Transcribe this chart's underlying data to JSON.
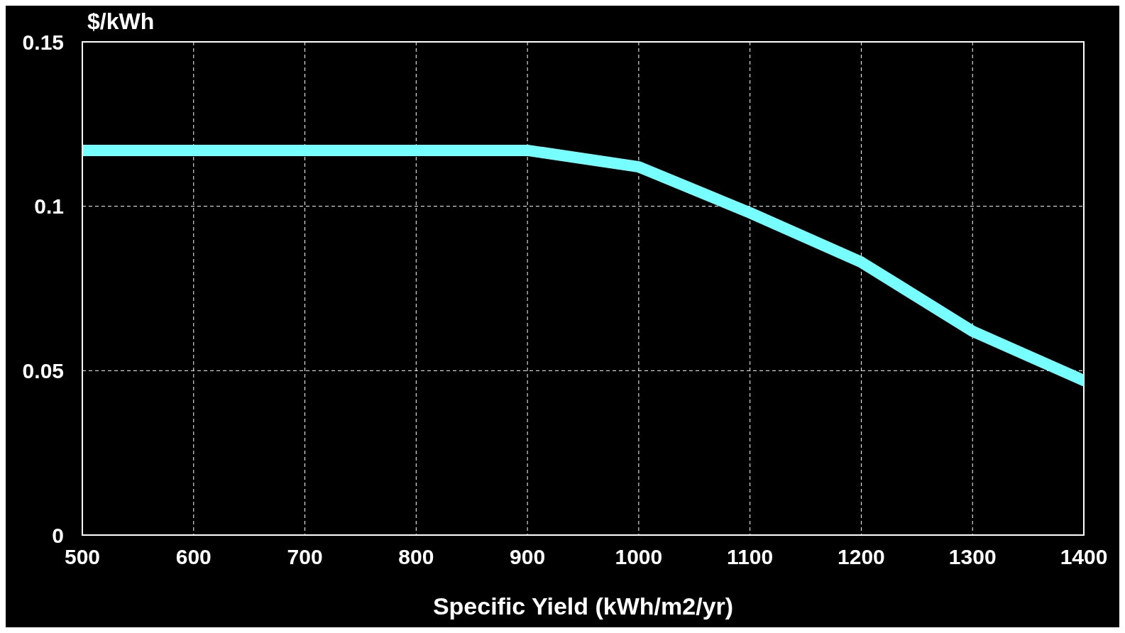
{
  "chart_data": {
    "type": "line",
    "xlabel": "Specific Yield (kWh/m2/yr)",
    "ylabel": "$/kWh",
    "x": [
      500,
      900,
      1000,
      1100,
      1200,
      1300,
      1400
    ],
    "series": [
      {
        "color": "#77ffff",
        "values": [
          0.117,
          0.117,
          0.112,
          0.098,
          0.083,
          0.062,
          0.047
        ]
      }
    ],
    "xlim": [
      500,
      1400
    ],
    "xticks": [
      500,
      600,
      700,
      800,
      900,
      1000,
      1100,
      1200,
      1300,
      1400
    ],
    "ylim": [
      0,
      0.15
    ],
    "yticks": [
      0,
      0.05,
      0.1,
      0.15
    ],
    "grid": true,
    "legend": false,
    "marker": "none",
    "line_style": "solid"
  }
}
